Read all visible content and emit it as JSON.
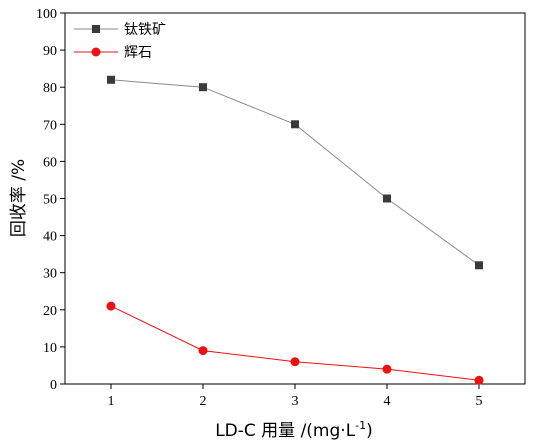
{
  "chart_data": {
    "type": "line",
    "x": [
      1,
      2,
      3,
      4,
      5
    ],
    "xticks": [
      "1",
      "2",
      "3",
      "4",
      "5"
    ],
    "yticks": [
      "0",
      "10",
      "20",
      "30",
      "40",
      "50",
      "60",
      "70",
      "80",
      "90",
      "100"
    ],
    "xlim": [
      0.5,
      5.5
    ],
    "ylim": [
      0,
      100
    ],
    "xlabel": "LD-C 用量 /(mg·L",
    "xlabel_sup": "-1",
    "xlabel_end": ")",
    "ylabel": "回收率 /%",
    "grid": false,
    "legend_position": "top-left",
    "series": [
      {
        "name": "钛铁矿",
        "values": [
          82,
          80,
          70,
          50,
          32
        ],
        "color": "#3a3a3a",
        "line_color": "#8a8a8a",
        "marker": "square"
      },
      {
        "name": "辉石",
        "values": [
          21,
          9,
          6,
          4,
          1
        ],
        "color": "#ee1111",
        "line_color": "#ee1111",
        "marker": "circle"
      }
    ]
  }
}
